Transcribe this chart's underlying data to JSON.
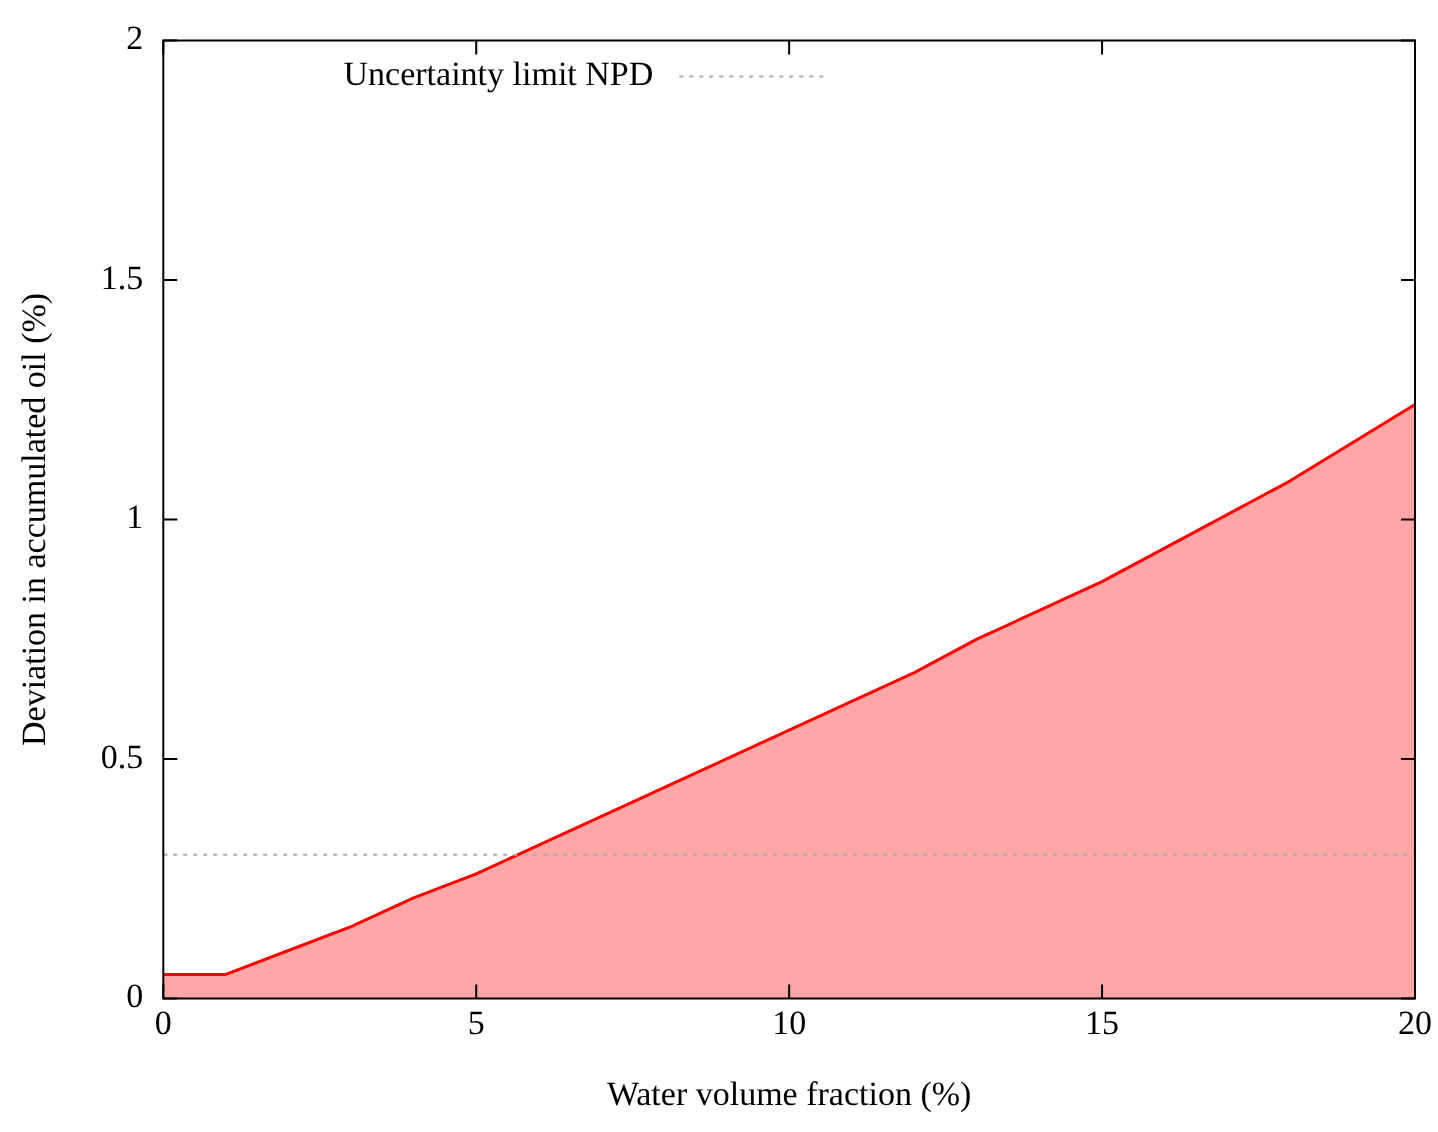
{
  "chart_data": {
    "type": "area",
    "xlabel": "Water volume fraction (%)",
    "ylabel": "Deviation in accumulated oil (%)",
    "x": [
      0,
      1,
      2,
      3,
      4,
      5,
      6,
      7,
      8,
      9,
      10,
      11,
      12,
      13,
      14,
      15,
      16,
      17,
      18,
      19,
      20
    ],
    "series": [
      {
        "color": "#ff0000",
        "values": [
          0.05,
          0.05,
          0.1,
          0.15,
          0.21,
          0.26,
          0.32,
          0.38,
          0.44,
          0.5,
          0.56,
          0.62,
          0.68,
          0.75,
          0.81,
          0.87,
          0.94,
          1.01,
          1.08,
          1.16,
          1.24
        ]
      }
    ],
    "xlim": [
      0,
      20
    ],
    "xticks": [
      0,
      5,
      10,
      15,
      20
    ],
    "ylim": [
      0,
      2
    ],
    "yticks": [
      0,
      0.5,
      1,
      1.5,
      2
    ],
    "ref_lines": [
      {
        "axis": "y",
        "value": 0.3,
        "label": "Uncertainty limit NPD",
        "color": "#aaaaaa",
        "line_style": "dotted"
      }
    ],
    "grid": false
  }
}
